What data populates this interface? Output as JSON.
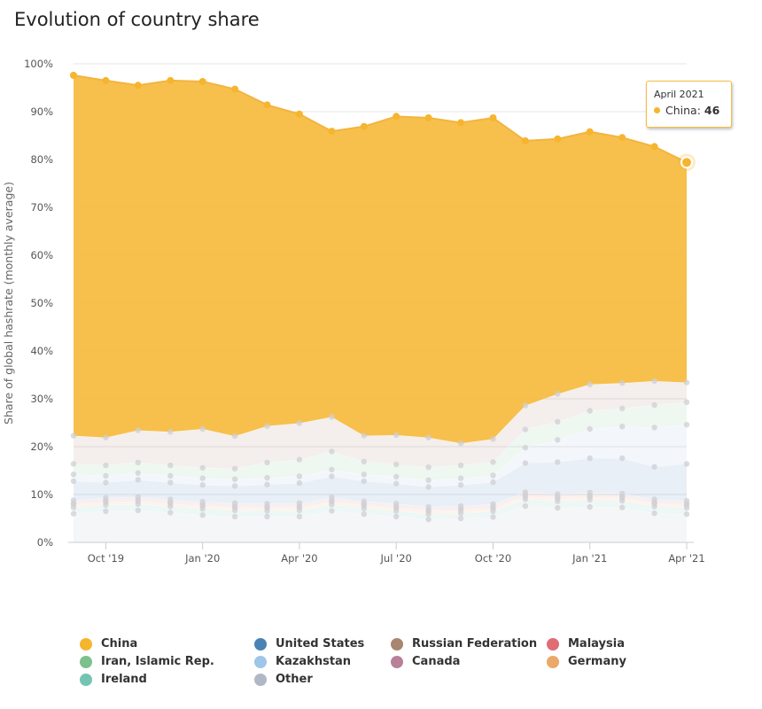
{
  "chart_data": {
    "type": "area",
    "stacking": "percent",
    "title": "Evolution of country share",
    "ylabel": "Share of global hashrate (monthly average)",
    "xlabel": "",
    "ylim": [
      0,
      100
    ],
    "y_ticks": [
      "0%",
      "10%",
      "20%",
      "30%",
      "40%",
      "50%",
      "60%",
      "70%",
      "80%",
      "90%",
      "100%"
    ],
    "x_ticks": [
      {
        "label": "Oct '19",
        "index": 1
      },
      {
        "label": "Jan '20",
        "index": 4
      },
      {
        "label": "Apr '20",
        "index": 7
      },
      {
        "label": "Jul '20",
        "index": 10
      },
      {
        "label": "Oct '20",
        "index": 13
      },
      {
        "label": "Jan '21",
        "index": 16
      },
      {
        "label": "Apr '21",
        "index": 19
      }
    ],
    "categories": [
      "Sep 2019",
      "Oct 2019",
      "Nov 2019",
      "Dec 2019",
      "Jan 2020",
      "Feb 2020",
      "Mar 2020",
      "Apr 2020",
      "May 2020",
      "Jun 2020",
      "Jul 2020",
      "Aug 2020",
      "Sep 2020",
      "Oct 2020",
      "Nov 2020",
      "Dec 2020",
      "Jan 2021",
      "Feb 2021",
      "Mar 2021",
      "Apr 2021"
    ],
    "series": [
      {
        "name": "Other",
        "color": "#b0b8c6",
        "values": [
          6.0,
          6.5,
          6.7,
          6.2,
          5.7,
          5.4,
          5.4,
          5.4,
          6.6,
          5.9,
          5.4,
          4.8,
          5.0,
          5.3,
          7.6,
          7.2,
          7.4,
          7.3,
          6.1,
          5.9
        ]
      },
      {
        "name": "Ireland",
        "color": "#74c4b4",
        "values": [
          1.3,
          1.3,
          1.3,
          1.3,
          1.3,
          1.3,
          1.2,
          1.3,
          1.3,
          1.2,
          1.2,
          1.1,
          1.1,
          1.2,
          1.4,
          1.4,
          1.5,
          1.4,
          1.4,
          1.3
        ]
      },
      {
        "name": "Germany",
        "color": "#eba868",
        "values": [
          0.6,
          0.6,
          0.6,
          0.6,
          0.6,
          0.6,
          0.6,
          0.6,
          0.6,
          0.6,
          0.6,
          0.6,
          0.6,
          0.6,
          0.6,
          0.6,
          0.6,
          0.6,
          0.6,
          0.6
        ]
      },
      {
        "name": "Malaysia",
        "color": "#e06c74",
        "values": [
          0.3,
          0.3,
          0.3,
          0.3,
          0.3,
          0.3,
          0.3,
          0.3,
          0.3,
          0.3,
          0.3,
          0.3,
          0.3,
          0.3,
          0.3,
          0.3,
          0.3,
          0.3,
          0.3,
          0.3
        ]
      },
      {
        "name": "Canada",
        "color": "#b88099",
        "values": [
          0.6,
          0.6,
          0.6,
          0.6,
          0.6,
          0.6,
          0.6,
          0.6,
          0.6,
          0.6,
          0.6,
          0.6,
          0.6,
          0.6,
          0.6,
          0.6,
          0.6,
          0.6,
          0.6,
          0.6
        ]
      },
      {
        "name": "United States",
        "color": "#4a82b6",
        "values": [
          4.0,
          3.2,
          3.6,
          3.5,
          3.5,
          3.6,
          4.0,
          4.2,
          4.4,
          4.2,
          4.2,
          4.2,
          4.4,
          4.6,
          6.1,
          6.7,
          7.2,
          7.4,
          6.8,
          7.7
        ]
      },
      {
        "name": "Kazakhstan",
        "color": "#9fc5e8",
        "values": [
          1.4,
          1.4,
          1.4,
          1.4,
          1.4,
          1.4,
          1.4,
          1.4,
          1.4,
          1.4,
          1.4,
          1.4,
          1.4,
          1.4,
          3.2,
          4.6,
          6.1,
          6.6,
          8.2,
          8.2
        ]
      },
      {
        "name": "Iran, Islamic Rep.",
        "color": "#7cc08c",
        "values": [
          2.2,
          2.2,
          2.2,
          2.2,
          2.2,
          2.2,
          3.2,
          3.5,
          3.8,
          2.7,
          2.6,
          2.7,
          2.7,
          2.8,
          3.8,
          3.8,
          3.8,
          3.8,
          4.7,
          4.7
        ]
      },
      {
        "name": "Russian Federation",
        "color": "#a88670",
        "values": [
          5.9,
          5.8,
          6.7,
          7.0,
          8.1,
          6.8,
          7.6,
          7.6,
          7.2,
          5.4,
          6.1,
          6.2,
          4.6,
          4.8,
          5.0,
          5.8,
          5.5,
          5.3,
          5.0,
          4.1
        ]
      },
      {
        "name": "China",
        "color": "#f6b52e",
        "values": [
          75.3,
          74.6,
          72.1,
          73.4,
          72.6,
          72.5,
          67.1,
          64.6,
          59.7,
          64.6,
          66.6,
          66.8,
          67.0,
          67.1,
          55.3,
          53.3,
          52.8,
          51.3,
          49.0,
          46.0
        ]
      }
    ],
    "tooltip": {
      "date": "April 2021",
      "series": "China",
      "label": "China:",
      "value": "46"
    },
    "legend_position": "bottom"
  },
  "legend": [
    {
      "name": "China",
      "color": "#f6b52e"
    },
    {
      "name": "United States",
      "color": "#4a82b6"
    },
    {
      "name": "Russian Federation",
      "color": "#a88670"
    },
    {
      "name": "Malaysia",
      "color": "#e06c74"
    },
    {
      "name": "Iran, Islamic Rep.",
      "color": "#7cc08c"
    },
    {
      "name": "Kazakhstan",
      "color": "#9fc5e8"
    },
    {
      "name": "Canada",
      "color": "#b88099"
    },
    {
      "name": "Germany",
      "color": "#eba868"
    },
    {
      "name": "Ireland",
      "color": "#74c4b4"
    },
    {
      "name": "Other",
      "color": "#b0b8c6"
    }
  ]
}
